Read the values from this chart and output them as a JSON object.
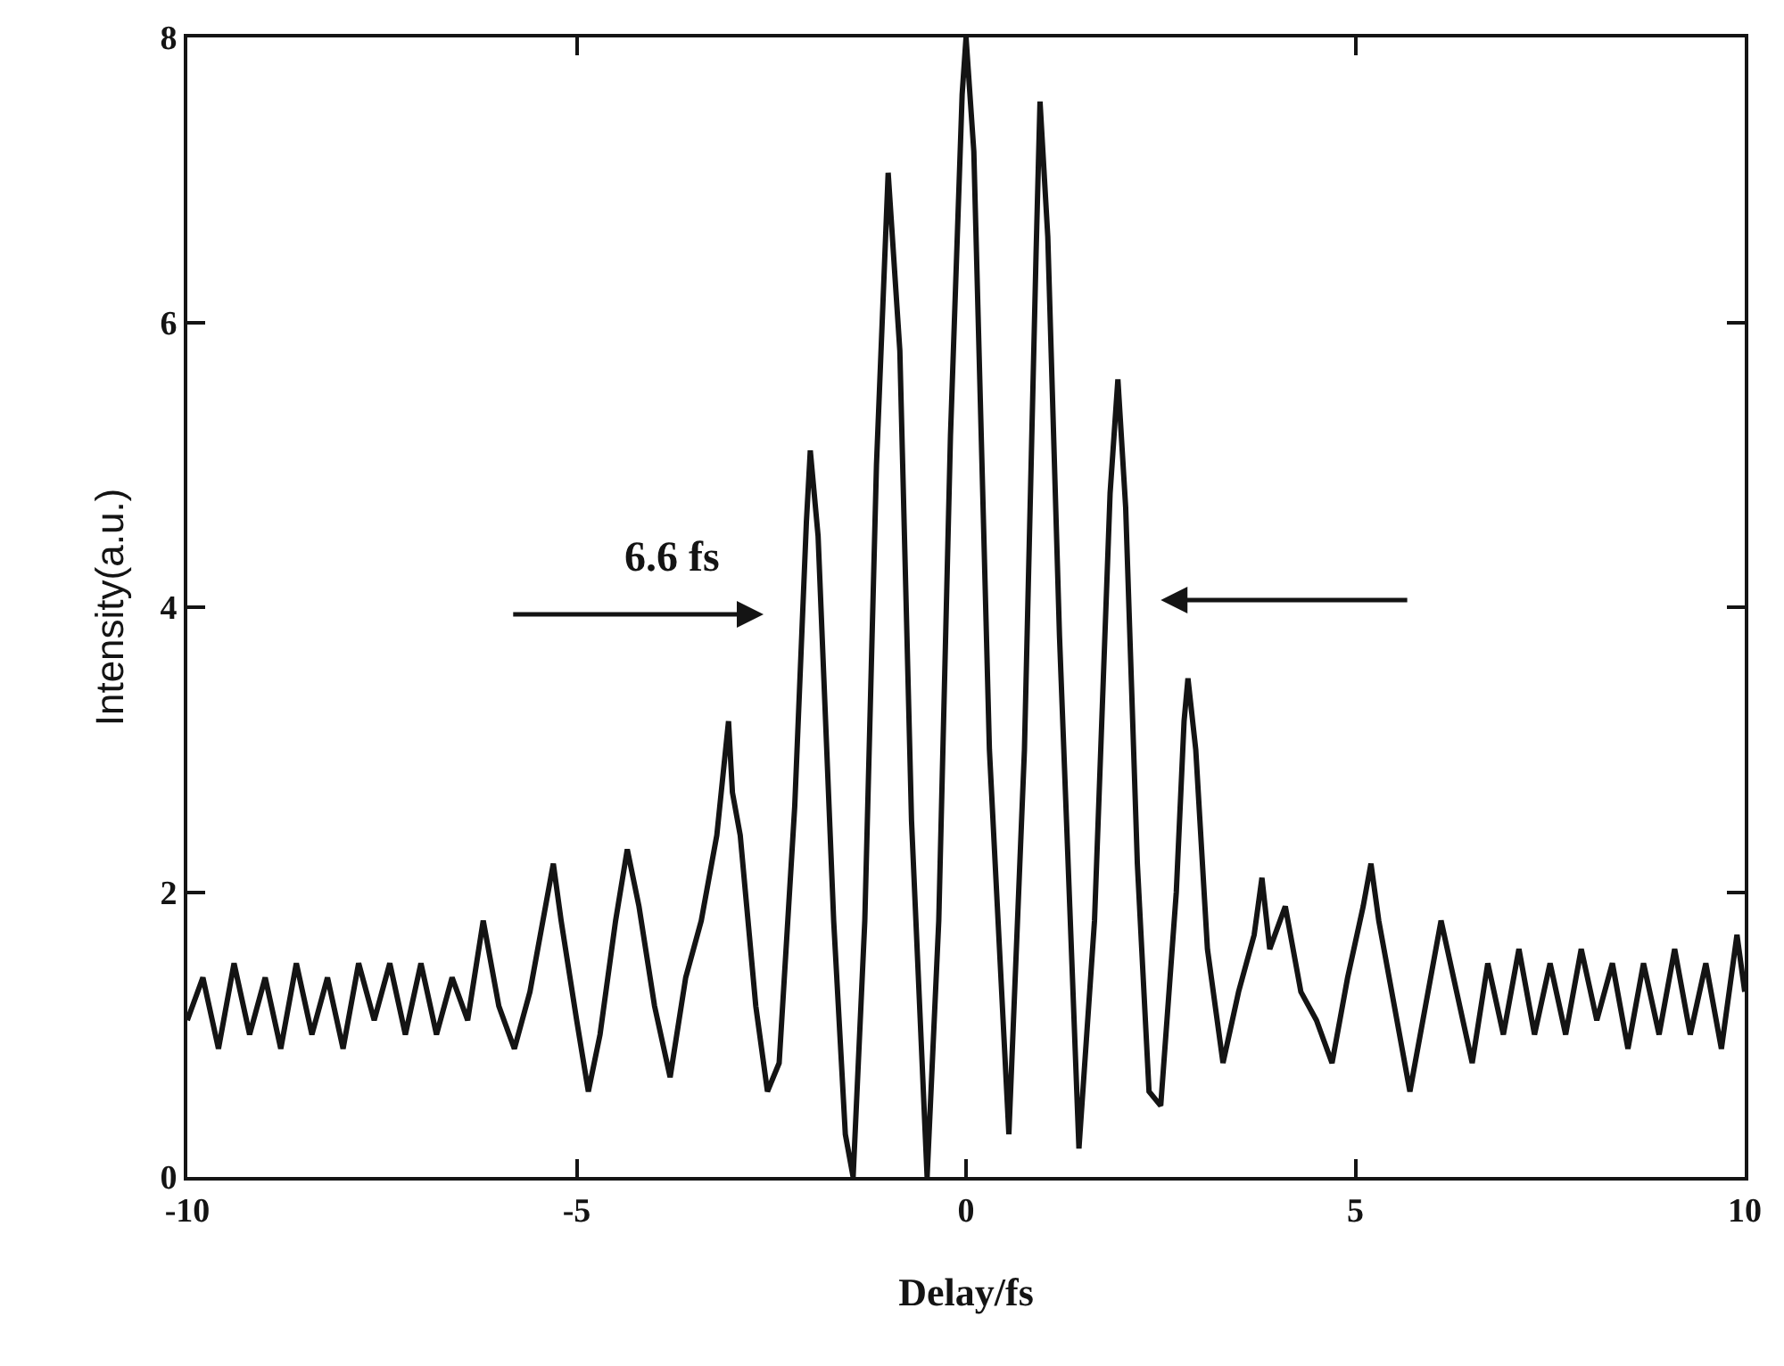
{
  "chart_data": {
    "type": "line",
    "xlabel": "Delay/fs",
    "ylabel": "Intensity(a.u.)",
    "annotations": [
      "6.6 fs"
    ],
    "xlim": [
      -10,
      10
    ],
    "xticks": [
      -10,
      -5,
      0,
      5,
      10
    ],
    "ylim": [
      0,
      8
    ],
    "yticks": [
      0,
      2,
      4,
      6,
      8
    ],
    "grid": false,
    "marker": "none",
    "line_style": "solid",
    "series": [
      {
        "color": "#141414",
        "x": [
          -10,
          -9.8,
          -9.6,
          -9.4,
          -9.2,
          -9.0,
          -8.8,
          -8.6,
          -8.4,
          -8.2,
          -8.0,
          -7.8,
          -7.6,
          -7.4,
          -7.2,
          -7.0,
          -6.8,
          -6.6,
          -6.4,
          -6.2,
          -6.0,
          -5.8,
          -5.6,
          -5.4,
          -5.3,
          -5.2,
          -5.0,
          -4.85,
          -4.7,
          -4.5,
          -4.35,
          -4.2,
          -4.0,
          -3.8,
          -3.6,
          -3.4,
          -3.2,
          -3.05,
          -3.0,
          -2.9,
          -2.7,
          -2.55,
          -2.4,
          -2.2,
          -2.05,
          -2.0,
          -1.9,
          -1.7,
          -1.55,
          -1.45,
          -1.3,
          -1.15,
          -1.0,
          -0.85,
          -0.7,
          -0.5,
          -0.35,
          -0.2,
          -0.05,
          0,
          0.1,
          0.3,
          0.55,
          0.75,
          0.9,
          0.95,
          1.05,
          1.2,
          1.45,
          1.65,
          1.85,
          1.95,
          2.05,
          2.2,
          2.35,
          2.5,
          2.7,
          2.8,
          2.85,
          2.95,
          3.1,
          3.3,
          3.5,
          3.7,
          3.8,
          3.9,
          4.1,
          4.3,
          4.5,
          4.7,
          4.9,
          5.1,
          5.2,
          5.3,
          5.5,
          5.7,
          5.9,
          6.1,
          6.3,
          6.5,
          6.7,
          6.9,
          7.1,
          7.3,
          7.5,
          7.7,
          7.9,
          8.1,
          8.3,
          8.5,
          8.7,
          8.9,
          9.1,
          9.3,
          9.5,
          9.7,
          9.9,
          10
        ],
        "values": [
          1.1,
          1.4,
          0.9,
          1.5,
          1.0,
          1.4,
          0.9,
          1.5,
          1.0,
          1.4,
          0.9,
          1.5,
          1.1,
          1.5,
          1.0,
          1.5,
          1.0,
          1.4,
          1.1,
          1.8,
          1.2,
          0.9,
          1.3,
          1.9,
          2.2,
          1.8,
          1.1,
          0.6,
          1.0,
          1.8,
          2.3,
          1.9,
          1.2,
          0.7,
          1.4,
          1.8,
          2.4,
          3.2,
          2.7,
          2.4,
          1.2,
          0.6,
          0.8,
          2.6,
          4.6,
          5.1,
          4.5,
          1.8,
          0.3,
          0,
          1.8,
          5.0,
          7.05,
          5.8,
          2.5,
          0,
          1.8,
          5.2,
          7.6,
          8.0,
          7.2,
          3.0,
          0.3,
          3.0,
          6.5,
          7.55,
          6.6,
          3.8,
          0.2,
          1.8,
          4.8,
          5.6,
          4.7,
          2.2,
          0.6,
          0.5,
          2.0,
          3.2,
          3.5,
          3.0,
          1.6,
          0.8,
          1.3,
          1.7,
          2.1,
          1.6,
          1.9,
          1.3,
          1.1,
          0.8,
          1.4,
          1.9,
          2.2,
          1.8,
          1.2,
          0.6,
          1.2,
          1.8,
          1.3,
          0.8,
          1.5,
          1.0,
          1.6,
          1.0,
          1.5,
          1.0,
          1.6,
          1.1,
          1.5,
          0.9,
          1.5,
          1.0,
          1.6,
          1.0,
          1.5,
          0.9,
          1.7,
          1.3
        ]
      }
    ]
  }
}
